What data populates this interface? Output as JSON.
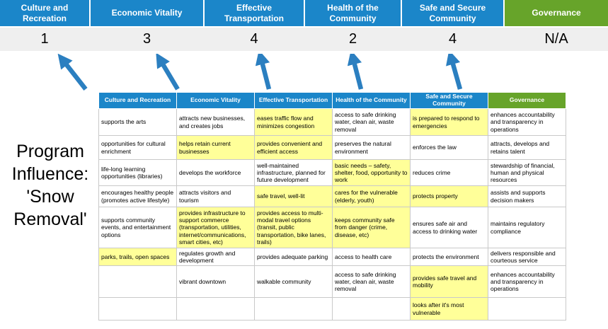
{
  "program_label": "Program Influence: 'Snow Removal'",
  "categories": [
    {
      "label": "Culture and Recreation",
      "score": "1"
    },
    {
      "label": "Economic Vitality",
      "score": "3"
    },
    {
      "label": "Effective Transportation",
      "score": "4"
    },
    {
      "label": "Health of the Community",
      "score": "2"
    },
    {
      "label": "Safe and Secure Community",
      "score": "4"
    },
    {
      "label": "Governance",
      "score": "N/A"
    }
  ],
  "arrows": {
    "count": 5,
    "icon": "up-arrow-icon",
    "color": "#2b7fc0"
  },
  "colors": {
    "header_blue": "#1b86c9",
    "header_green": "#67a42a",
    "highlight_yellow": "#ffff99",
    "score_band_bg": "#efefef",
    "arrow_blue": "#2b7fc0"
  },
  "matrix": {
    "headers": [
      "Culture and Recreation",
      "Economic Vitality",
      "Effective Transportation",
      "Health of the Community",
      "Safe and Secure Community",
      "Governance"
    ],
    "rows": [
      [
        {
          "text": "supports the arts",
          "highlight": false
        },
        {
          "text": "attracts new businesses, and creates jobs",
          "highlight": false
        },
        {
          "text": "eases traffic flow and minimizes congestion",
          "highlight": true
        },
        {
          "text": "access to safe drinking water, clean air, waste removal",
          "highlight": false
        },
        {
          "text": "is prepared to respond to emergencies",
          "highlight": true
        },
        {
          "text": "enhances accountability and transparency in operations",
          "highlight": false
        }
      ],
      [
        {
          "text": "opportunities for cultural enrichment",
          "highlight": false
        },
        {
          "text": "helps retain current businesses",
          "highlight": true
        },
        {
          "text": "provides convenient and efficient access",
          "highlight": true
        },
        {
          "text": "preserves the natural environment",
          "highlight": false
        },
        {
          "text": "enforces the law",
          "highlight": false
        },
        {
          "text": "attracts, develops and retains talent",
          "highlight": false
        }
      ],
      [
        {
          "text": "life-long learning opportunities (libraries)",
          "highlight": false
        },
        {
          "text": "develops the workforce",
          "highlight": false
        },
        {
          "text": "well-maintained infrastructure, planned for future development",
          "highlight": false
        },
        {
          "text": "basic needs – safety, shelter, food, opportunity to work",
          "highlight": true
        },
        {
          "text": "reduces crime",
          "highlight": false
        },
        {
          "text": "stewardship of financial, human and physical resources",
          "highlight": false
        }
      ],
      [
        {
          "text": "encourages healthy people (promotes active lifestyle)",
          "highlight": false
        },
        {
          "text": "attracts visitors and tourism",
          "highlight": false
        },
        {
          "text": "safe travel, well-lit",
          "highlight": true
        },
        {
          "text": "cares for the vulnerable (elderly, youth)",
          "highlight": true
        },
        {
          "text": "protects property",
          "highlight": true
        },
        {
          "text": "assists and supports decision makers",
          "highlight": false
        }
      ],
      [
        {
          "text": "supports community events, and entertainment options",
          "highlight": false
        },
        {
          "text": "provides infrastructure to support commerce (transportation, utilities, internet/communications, smart cities, etc)",
          "highlight": true
        },
        {
          "text": "provides access to multi-modal travel options (transit, public transportation, bike lanes, trails)",
          "highlight": true
        },
        {
          "text": "keeps community safe from danger (crime, disease, etc)",
          "highlight": true
        },
        {
          "text": "ensures safe air and access to drinking water",
          "highlight": false
        },
        {
          "text": "maintains regulatory compliance",
          "highlight": false
        }
      ],
      [
        {
          "text": "parks, trails, open spaces",
          "highlight": true
        },
        {
          "text": "regulates growth and development",
          "highlight": false
        },
        {
          "text": "provides adequate parking",
          "highlight": false
        },
        {
          "text": "access to health care",
          "highlight": false
        },
        {
          "text": "protects the environment",
          "highlight": false
        },
        {
          "text": "delivers responsible and courteous service",
          "highlight": false
        }
      ],
      [
        {
          "text": "",
          "highlight": false
        },
        {
          "text": "vibrant downtown",
          "highlight": false
        },
        {
          "text": "walkable community",
          "highlight": false
        },
        {
          "text": "access to safe drinking water, clean air, waste removal",
          "highlight": false
        },
        {
          "text": "provides safe travel and mobility",
          "highlight": true
        },
        {
          "text": "enhances accountability and transparency in operations",
          "highlight": false
        }
      ],
      [
        {
          "text": "",
          "highlight": false
        },
        {
          "text": "",
          "highlight": false
        },
        {
          "text": "",
          "highlight": false
        },
        {
          "text": "",
          "highlight": false
        },
        {
          "text": "looks after it's most vulnerable",
          "highlight": true
        },
        {
          "text": "",
          "highlight": false
        }
      ]
    ]
  }
}
